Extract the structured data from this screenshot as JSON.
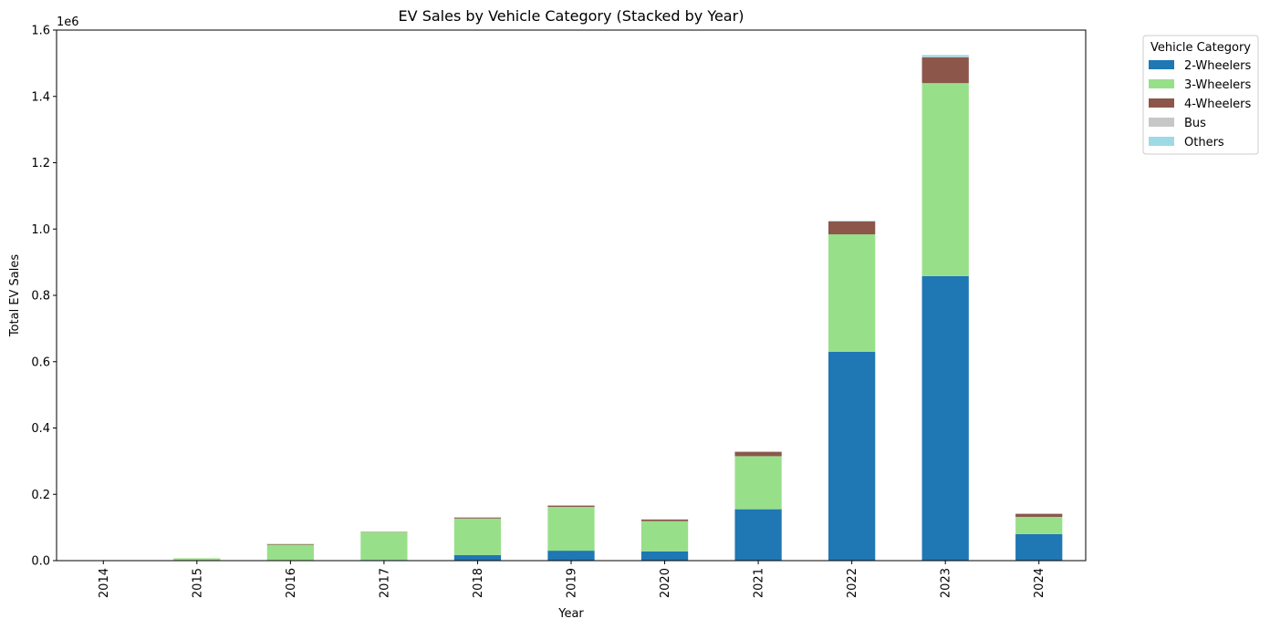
{
  "chart_data": {
    "type": "bar",
    "stacked": true,
    "title": "EV Sales by Vehicle Category (Stacked by Year)",
    "xlabel": "Year",
    "ylabel": "Total EV Sales",
    "y_offset_label": "1e6",
    "categories": [
      "2014",
      "2015",
      "2016",
      "2017",
      "2018",
      "2019",
      "2020",
      "2021",
      "2022",
      "2023",
      "2024"
    ],
    "ylim": [
      0,
      1.6
    ],
    "yticks": [
      "0.0",
      "0.2",
      "0.4",
      "0.6",
      "0.8",
      "1.0",
      "1.2",
      "1.4",
      "1.6"
    ],
    "grid": false,
    "legend": {
      "title": "Vehicle Category",
      "placement": "outside upper-right"
    },
    "series": [
      {
        "name": "2-Wheelers",
        "color": "#1f77b4",
        "values": [
          0,
          0.001,
          0.001,
          0.002,
          0.017,
          0.03,
          0.028,
          0.155,
          0.63,
          0.858,
          0.08
        ]
      },
      {
        "name": "3-Wheelers",
        "color": "#98df8a",
        "values": [
          0.0005,
          0.006,
          0.047,
          0.084,
          0.11,
          0.132,
          0.091,
          0.16,
          0.354,
          0.582,
          0.052
        ]
      },
      {
        "name": "4-Wheelers",
        "color": "#8c564b",
        "values": [
          0,
          0,
          0.002,
          0.001,
          0.003,
          0.004,
          0.005,
          0.013,
          0.039,
          0.078,
          0.009
        ]
      },
      {
        "name": "Bus",
        "color": "#c7c7c7",
        "values": [
          0,
          0,
          0,
          0,
          0.0005,
          0.0005,
          0.0005,
          0.001,
          0.001,
          0.002,
          0.001
        ]
      },
      {
        "name": "Others",
        "color": "#9edae5",
        "values": [
          0,
          0,
          0,
          0,
          0.0005,
          0.0005,
          0.0005,
          0.001,
          0.001,
          0.005,
          0.001
        ]
      }
    ]
  }
}
